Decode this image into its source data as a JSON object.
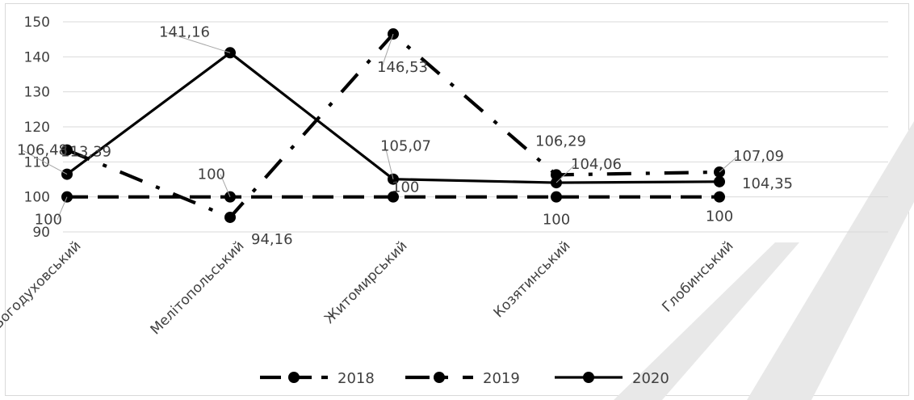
{
  "chart_data": {
    "type": "line",
    "title": "",
    "xlabel": "",
    "ylabel": "",
    "categories": [
      "Богодуховський",
      "Мелітопольський",
      "Житомирський",
      "Козятинський",
      "Глобинський"
    ],
    "ylim": [
      90,
      150
    ],
    "yticks": [
      "90",
      "100",
      "110",
      "120",
      "130",
      "140",
      "150"
    ],
    "grid": true,
    "legend_position": "bottom",
    "series": [
      {
        "name": "2018",
        "values": [
          100,
          100,
          100,
          100,
          100
        ],
        "labels": [
          "100",
          "100",
          "100",
          "100",
          "100"
        ],
        "style": "dashed",
        "color": "#000000"
      },
      {
        "name": "2019",
        "values": [
          113.39,
          94.16,
          146.53,
          106.29,
          107.09
        ],
        "labels": [
          "113,39",
          "94,16",
          "146,53",
          "106,29",
          "107,09"
        ],
        "style": "dash-dot",
        "color": "#000000"
      },
      {
        "name": "2020",
        "values": [
          106.48,
          141.16,
          105.07,
          104.06,
          104.35
        ],
        "labels": [
          "106,48",
          "141,16",
          "105,07",
          "104,06",
          "104,35"
        ],
        "style": "solid",
        "color": "#000000"
      }
    ]
  }
}
